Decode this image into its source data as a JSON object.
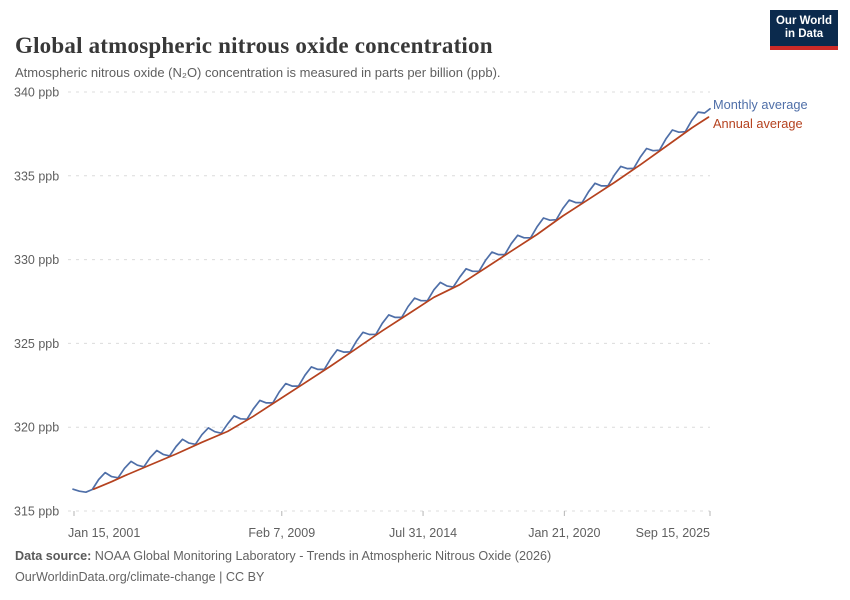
{
  "header": {
    "title": "Global atmospheric nitrous oxide concentration",
    "subtitle": "Atmospheric nitrous oxide (N₂O) concentration is measured in parts per billion (ppb).",
    "logo": {
      "line1": "Our World",
      "line2": "in Data",
      "bg": "#0b2a4d",
      "accent": "#cc2a27",
      "text_color": "#ffffff"
    }
  },
  "footer": {
    "source_label": "Data source:",
    "source_text": " NOAA Global Monitoring Laboratory - Trends in Atmospheric Nitrous Oxide (2026)",
    "license_text": "OurWorldinData.org/climate-change | CC BY"
  },
  "chart_data": {
    "type": "line",
    "title": "Global atmospheric nitrous oxide concentration",
    "xlabel": "",
    "ylabel": "ppb",
    "unit": "ppb",
    "ylim": [
      315,
      340
    ],
    "xlim": [
      2001.0,
      2025.75
    ],
    "grid": "horizontal dashed",
    "grid_color": "#dcdcdc",
    "axis_text_color": "#5f5f5f",
    "legend_position": "right-of-line-ends",
    "y_ticks": [
      {
        "v": 315,
        "label": "315 ppb"
      },
      {
        "v": 320,
        "label": "320 ppb"
      },
      {
        "v": 325,
        "label": "325 ppb"
      },
      {
        "v": 330,
        "label": "330 ppb"
      },
      {
        "v": 335,
        "label": "335 ppb"
      },
      {
        "v": 340,
        "label": "340 ppb"
      }
    ],
    "x_ticks": [
      {
        "t": 2001.04,
        "label": "Jan 15, 2001",
        "align": "start"
      },
      {
        "t": 2009.1,
        "label": "Feb 7, 2009",
        "align": "middle"
      },
      {
        "t": 2014.58,
        "label": "Jul 31, 2014",
        "align": "middle"
      },
      {
        "t": 2020.06,
        "label": "Jan 21, 2020",
        "align": "middle"
      },
      {
        "t": 2025.71,
        "label": "Sep 15, 2025",
        "align": "end"
      }
    ],
    "series": [
      {
        "name": "Monthly average",
        "color": "#4f6fa8",
        "points": [
          [
            2001.0,
            316.3
          ],
          [
            2001.25,
            316.18
          ],
          [
            2001.5,
            316.12
          ],
          [
            2001.75,
            316.28
          ],
          [
            2002.0,
            316.88
          ],
          [
            2002.25,
            317.29
          ],
          [
            2002.5,
            317.05
          ],
          [
            2002.75,
            316.98
          ],
          [
            2003.0,
            317.55
          ],
          [
            2003.25,
            317.96
          ],
          [
            2003.5,
            317.73
          ],
          [
            2003.75,
            317.64
          ],
          [
            2004.0,
            318.2
          ],
          [
            2004.25,
            318.61
          ],
          [
            2004.5,
            318.38
          ],
          [
            2004.75,
            318.29
          ],
          [
            2005.0,
            318.85
          ],
          [
            2005.25,
            319.28
          ],
          [
            2005.5,
            319.05
          ],
          [
            2005.75,
            318.98
          ],
          [
            2006.0,
            319.55
          ],
          [
            2006.25,
            319.96
          ],
          [
            2006.5,
            319.73
          ],
          [
            2006.75,
            319.64
          ],
          [
            2007.0,
            320.2
          ],
          [
            2007.25,
            320.68
          ],
          [
            2007.5,
            320.5
          ],
          [
            2007.75,
            320.48
          ],
          [
            2008.0,
            321.1
          ],
          [
            2008.25,
            321.6
          ],
          [
            2008.5,
            321.45
          ],
          [
            2008.75,
            321.45
          ],
          [
            2009.0,
            322.1
          ],
          [
            2009.25,
            322.6
          ],
          [
            2009.5,
            322.45
          ],
          [
            2009.75,
            322.45
          ],
          [
            2010.0,
            323.1
          ],
          [
            2010.25,
            323.6
          ],
          [
            2010.5,
            323.45
          ],
          [
            2010.75,
            323.45
          ],
          [
            2011.0,
            324.1
          ],
          [
            2011.25,
            324.61
          ],
          [
            2011.5,
            324.48
          ],
          [
            2011.75,
            324.49
          ],
          [
            2012.0,
            325.15
          ],
          [
            2012.25,
            325.66
          ],
          [
            2012.5,
            325.53
          ],
          [
            2012.75,
            325.54
          ],
          [
            2013.0,
            326.2
          ],
          [
            2013.25,
            326.7
          ],
          [
            2013.5,
            326.55
          ],
          [
            2013.75,
            326.55
          ],
          [
            2014.0,
            327.2
          ],
          [
            2014.25,
            327.7
          ],
          [
            2014.5,
            327.55
          ],
          [
            2014.75,
            327.55
          ],
          [
            2015.0,
            328.2
          ],
          [
            2015.25,
            328.64
          ],
          [
            2015.5,
            328.43
          ],
          [
            2015.75,
            328.36
          ],
          [
            2016.0,
            328.95
          ],
          [
            2016.25,
            329.45
          ],
          [
            2016.5,
            329.3
          ],
          [
            2016.75,
            329.3
          ],
          [
            2017.0,
            329.95
          ],
          [
            2017.25,
            330.45
          ],
          [
            2017.5,
            330.3
          ],
          [
            2017.75,
            330.3
          ],
          [
            2018.0,
            330.95
          ],
          [
            2018.25,
            331.45
          ],
          [
            2018.5,
            331.3
          ],
          [
            2018.75,
            331.3
          ],
          [
            2019.0,
            331.95
          ],
          [
            2019.25,
            332.48
          ],
          [
            2019.5,
            332.35
          ],
          [
            2019.75,
            332.38
          ],
          [
            2020.0,
            333.05
          ],
          [
            2020.25,
            333.55
          ],
          [
            2020.5,
            333.4
          ],
          [
            2020.75,
            333.4
          ],
          [
            2021.0,
            334.05
          ],
          [
            2021.25,
            334.55
          ],
          [
            2021.5,
            334.4
          ],
          [
            2021.75,
            334.4
          ],
          [
            2022.0,
            335.05
          ],
          [
            2022.25,
            335.56
          ],
          [
            2022.5,
            335.43
          ],
          [
            2022.75,
            335.44
          ],
          [
            2023.0,
            336.1
          ],
          [
            2023.25,
            336.63
          ],
          [
            2023.5,
            336.5
          ],
          [
            2023.75,
            336.53
          ],
          [
            2024.0,
            337.2
          ],
          [
            2024.25,
            337.73
          ],
          [
            2024.5,
            337.6
          ],
          [
            2024.75,
            337.63
          ],
          [
            2025.0,
            338.3
          ],
          [
            2025.25,
            338.8
          ],
          [
            2025.5,
            338.75
          ],
          [
            2025.71,
            339.0
          ]
        ]
      },
      {
        "name": "Annual average",
        "color": "#b5421f",
        "points": [
          [
            2001.8,
            316.3
          ],
          [
            2002.5,
            316.75
          ],
          [
            2003.0,
            317.1
          ],
          [
            2004.0,
            317.75
          ],
          [
            2005.0,
            318.4
          ],
          [
            2006.0,
            319.1
          ],
          [
            2007.0,
            319.75
          ],
          [
            2008.0,
            320.65
          ],
          [
            2009.0,
            321.65
          ],
          [
            2010.0,
            322.65
          ],
          [
            2011.0,
            323.65
          ],
          [
            2012.0,
            324.7
          ],
          [
            2013.0,
            325.75
          ],
          [
            2014.0,
            326.75
          ],
          [
            2015.0,
            327.75
          ],
          [
            2016.0,
            328.5
          ],
          [
            2017.0,
            329.5
          ],
          [
            2018.0,
            330.5
          ],
          [
            2019.0,
            331.5
          ],
          [
            2020.0,
            332.6
          ],
          [
            2021.0,
            333.6
          ],
          [
            2022.0,
            334.6
          ],
          [
            2023.0,
            335.65
          ],
          [
            2024.0,
            336.75
          ],
          [
            2025.0,
            337.85
          ],
          [
            2025.65,
            338.5
          ]
        ]
      }
    ]
  }
}
